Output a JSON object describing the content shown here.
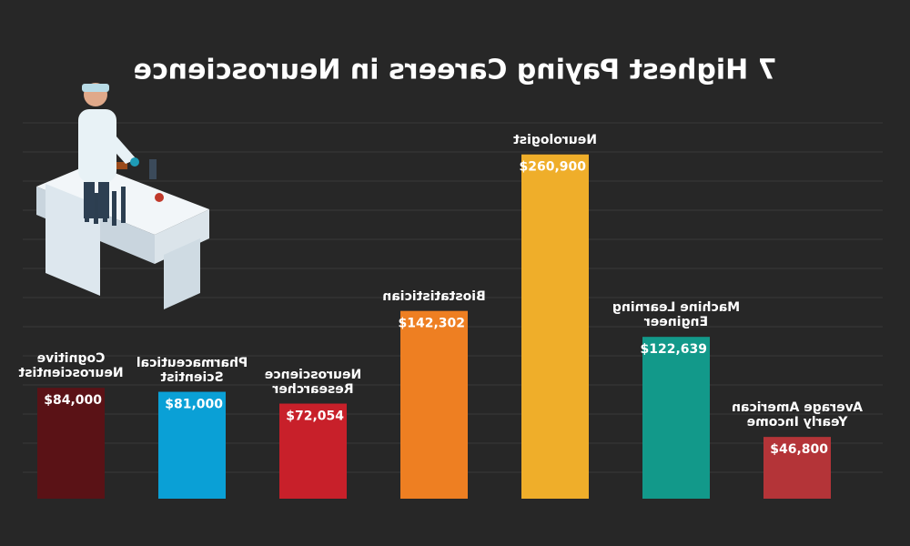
{
  "chart_data": {
    "type": "bar",
    "title": "7 Highest Paying Careers in Neuroscience",
    "categories": [
      "Average American Yearly Income",
      "Machine Learning Engineer",
      "Neurologist",
      "Biostatistician",
      "Neuroscience Researcher",
      "Pharmaceutical Scientist",
      "Cognitive Neuroscientist"
    ],
    "values": [
      46800,
      122639,
      260900,
      142302,
      72054,
      81000,
      84000
    ],
    "value_labels": [
      "$46,800",
      "$122,639",
      "$260,900",
      "$142,302",
      "$72,054",
      "$81,000",
      "$84,000"
    ],
    "colors": [
      "#b43438",
      "#12998a",
      "#efae2a",
      "#ee7f22",
      "#c8202a",
      "#0aa0d6",
      "#5a1216"
    ],
    "ylim": [
      0,
      280000
    ]
  }
}
